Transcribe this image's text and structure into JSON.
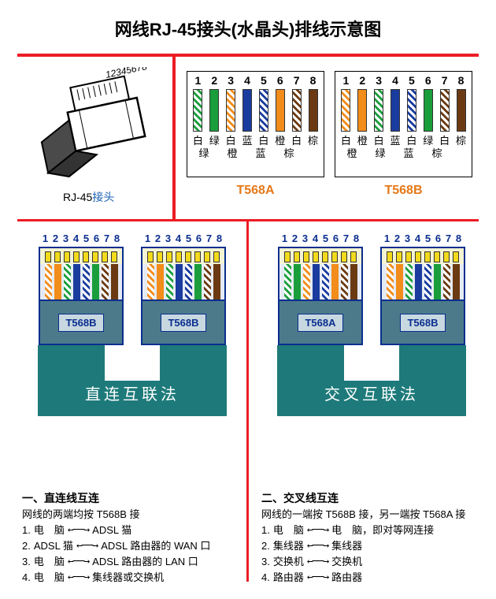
{
  "title": "网线RJ-45接头(水晶头)排线示意图",
  "colors": {
    "red": "#ec1c24",
    "blue_label": "#1a5fb4",
    "teal": "#1e7a7a",
    "plug_body": "#4c7a8a",
    "plug_top": "#f4f4d4",
    "gold": "#f3db1c",
    "t568a_color": "#e67817",
    "t568b_color": "#e67817"
  },
  "rj45": {
    "numbers": "12345678",
    "label_prefix": "RJ-45",
    "label_suffix": "接头"
  },
  "wire_colors": {
    "white_green": "repeating-linear-gradient(45deg,#fff,#fff 3px,#1a9e3c 3px,#1a9e3c 6px)",
    "green": "#1a9e3c",
    "white_orange": "repeating-linear-gradient(45deg,#fff,#fff 3px,#f28c1a 3px,#f28c1a 6px)",
    "orange": "#f28c1a",
    "white_blue": "repeating-linear-gradient(45deg,#fff,#fff 3px,#1a3c9e 3px,#1a3c9e 6px)",
    "blue": "#1a3c9e",
    "white_brown": "repeating-linear-gradient(45deg,#fff,#fff 3px,#6b3a12 3px,#6b3a12 6px)",
    "brown": "#6b3a12"
  },
  "t568a": {
    "label": "T568A",
    "pins": [
      "1",
      "2",
      "3",
      "4",
      "5",
      "6",
      "7",
      "8"
    ],
    "order": [
      "white_green",
      "green",
      "white_orange",
      "blue",
      "white_blue",
      "orange",
      "white_brown",
      "brown"
    ],
    "row1": [
      "白",
      "绿",
      "白",
      "蓝",
      "白",
      "橙",
      "白",
      "棕"
    ],
    "row2": [
      "绿",
      "橙",
      "蓝",
      "棕"
    ]
  },
  "t568b": {
    "label": "T568B",
    "pins": [
      "1",
      "2",
      "3",
      "4",
      "5",
      "6",
      "7",
      "8"
    ],
    "order": [
      "white_orange",
      "orange",
      "white_green",
      "blue",
      "white_blue",
      "green",
      "white_brown",
      "brown"
    ],
    "row1": [
      "白",
      "橙",
      "白",
      "蓝",
      "白",
      "绿",
      "白",
      "棕"
    ],
    "row2": [
      "橙",
      "绿",
      "蓝",
      "棕"
    ]
  },
  "straight": {
    "method": "直连互联法",
    "left_std": "T568B",
    "right_std": "T568B",
    "left_order": "t568b",
    "right_order": "t568b",
    "heading": "一、直连线互连",
    "subtitle": "网线的两端均按 T568B 接",
    "rows": [
      [
        "1.",
        "电　脑",
        "ADSL 猫"
      ],
      [
        "2.",
        "ADSL 猫",
        "ADSL 路由器的 WAN 口"
      ],
      [
        "3.",
        "电　脑",
        "ADSL 路由器的 LAN 口"
      ],
      [
        "4.",
        "电　脑",
        "集线器或交换机"
      ]
    ]
  },
  "crossover": {
    "method": "交叉互联法",
    "left_std": "T568A",
    "right_std": "T568B",
    "left_order": "t568a",
    "right_order": "t568b",
    "heading": "二、交叉线互连",
    "subtitle": "网线的一端按 T568B 接，另一端按 T568A 接",
    "rows": [
      [
        "1.",
        "电　脑",
        "电　脑，即对等网连接"
      ],
      [
        "2.",
        "集线器",
        "集线器"
      ],
      [
        "3.",
        "交换机",
        "交换机"
      ],
      [
        "4.",
        "路由器",
        "路由器"
      ]
    ]
  }
}
